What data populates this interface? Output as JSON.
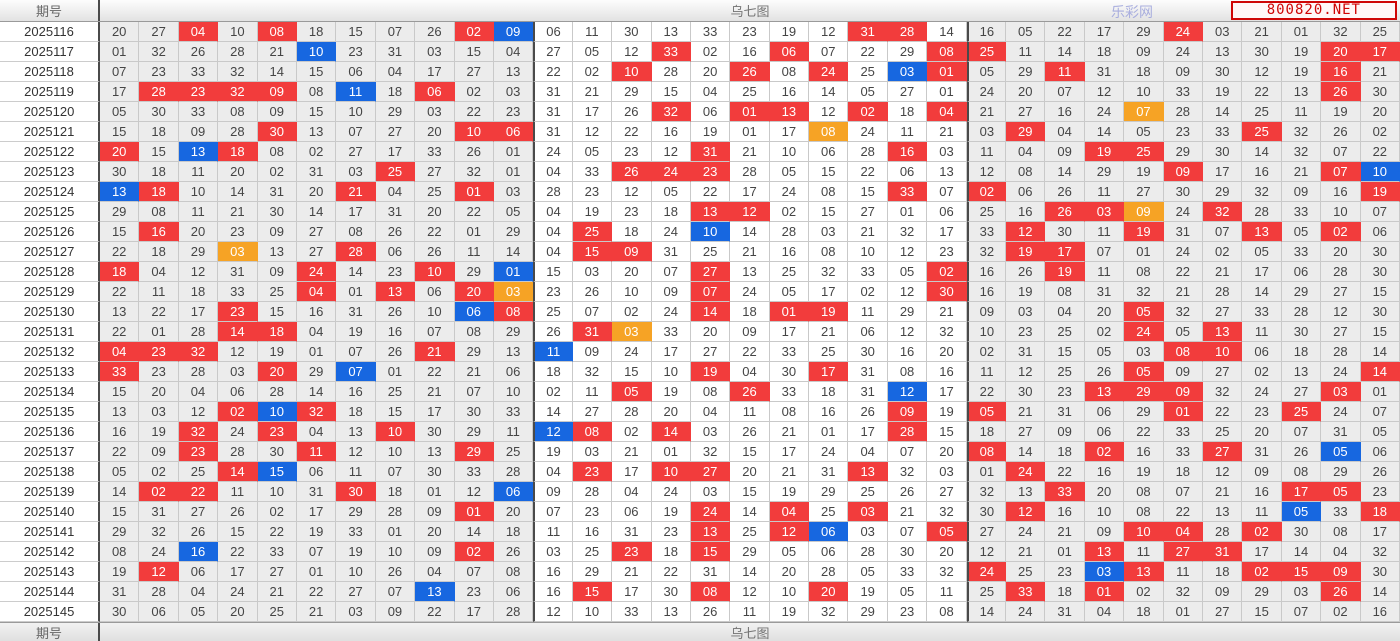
{
  "header": {
    "left_label": "期号",
    "center_label": "乌七图",
    "watermark_text": "乐彩网",
    "badge_text": "800820.NET"
  },
  "footer": {
    "left_label": "期号",
    "center_label": "乌七图"
  },
  "colors": {
    "red": "#f23c3c",
    "blue": "#1767e0",
    "orange": "#f6a325"
  },
  "chart_data": {
    "type": "table",
    "title": "乌七图",
    "columns": 33,
    "columns_per_section": 11,
    "cell_flag_legend": {
      "R": "red",
      "B": "blue",
      "O": "orange"
    },
    "rows": [
      {
        "period": "2025116",
        "cells": [
          "20",
          "27",
          "04:R",
          "10",
          "08:R",
          "18",
          "15",
          "07",
          "26",
          "02:R",
          "09:B",
          "06",
          "11",
          "30",
          "13",
          "33",
          "23",
          "19",
          "12",
          "31:R",
          "28:R",
          "14",
          "16",
          "05",
          "22",
          "17",
          "29",
          "24:R",
          "03",
          "21",
          "01",
          "32",
          "25"
        ]
      },
      {
        "period": "2025117",
        "cells": [
          "01",
          "32",
          "26",
          "28",
          "21",
          "10:B",
          "23",
          "31",
          "03",
          "15",
          "04",
          "27",
          "05",
          "12",
          "33:R",
          "02",
          "16",
          "06:R",
          "07",
          "22",
          "29",
          "08:R",
          "25:R",
          "11",
          "14",
          "18",
          "09",
          "24",
          "13",
          "30",
          "19",
          "20:R",
          "17:R"
        ]
      },
      {
        "period": "2025118",
        "cells": [
          "07",
          "23",
          "33",
          "32",
          "14",
          "15",
          "06",
          "04",
          "17",
          "27",
          "13",
          "22",
          "02",
          "10:R",
          "28",
          "20",
          "26:R",
          "08",
          "24:R",
          "25",
          "03:B",
          "01:R",
          "05",
          "29",
          "11:R",
          "31",
          "18",
          "09",
          "30",
          "12",
          "19",
          "16:R",
          "21"
        ]
      },
      {
        "period": "2025119",
        "cells": [
          "17",
          "28:R",
          "23:R",
          "32:R",
          "09:R",
          "08",
          "11:B",
          "18",
          "06:R",
          "02",
          "03",
          "31",
          "21",
          "29",
          "15",
          "04",
          "25",
          "16",
          "14",
          "05",
          "27",
          "01",
          "24",
          "20",
          "07",
          "12",
          "10",
          "33",
          "19",
          "22",
          "13",
          "26:R",
          "30"
        ]
      },
      {
        "period": "2025120",
        "cells": [
          "05",
          "30",
          "33",
          "08",
          "09",
          "15",
          "10",
          "29",
          "03",
          "22",
          "23",
          "31",
          "17",
          "26",
          "32:R",
          "06",
          "01:R",
          "13:R",
          "12",
          "02:R",
          "18",
          "04:R",
          "21",
          "27",
          "16",
          "24",
          "07:O",
          "28",
          "14",
          "25",
          "11",
          "19",
          "20"
        ]
      },
      {
        "period": "2025121",
        "cells": [
          "15",
          "18",
          "09",
          "28",
          "30:R",
          "13",
          "07",
          "27",
          "20",
          "10:R",
          "06:R",
          "31",
          "12",
          "22",
          "16",
          "19",
          "01",
          "17",
          "08:O",
          "24",
          "11",
          "21",
          "03",
          "29:R",
          "04",
          "14",
          "05",
          "23",
          "33",
          "25:R",
          "32",
          "26",
          "02"
        ]
      },
      {
        "period": "2025122",
        "cells": [
          "20:R",
          "15",
          "13:B",
          "18:R",
          "08",
          "02",
          "27",
          "17",
          "33",
          "26",
          "01",
          "24",
          "05",
          "23",
          "12",
          "31:R",
          "21",
          "10",
          "06",
          "28",
          "16:R",
          "03",
          "11",
          "04",
          "09",
          "19:R",
          "25:R",
          "29",
          "30",
          "14",
          "32",
          "07",
          "22"
        ]
      },
      {
        "period": "2025123",
        "cells": [
          "30",
          "18",
          "11",
          "20",
          "02",
          "31",
          "03",
          "25:R",
          "27",
          "32",
          "01",
          "04",
          "33",
          "26:R",
          "24:R",
          "23:R",
          "28",
          "05",
          "15",
          "22",
          "06",
          "13",
          "12",
          "08",
          "14",
          "29",
          "19",
          "09:R",
          "17",
          "16",
          "21",
          "07:R",
          "10:B"
        ]
      },
      {
        "period": "2025124",
        "cells": [
          "13:B",
          "18:R",
          "10",
          "14",
          "31",
          "20",
          "21:R",
          "04",
          "25",
          "01:R",
          "03",
          "28",
          "23",
          "12",
          "05",
          "22",
          "17",
          "24",
          "08",
          "15",
          "33:R",
          "07",
          "02:R",
          "06",
          "26",
          "11",
          "27",
          "30",
          "29",
          "32",
          "09",
          "16",
          "19:R"
        ]
      },
      {
        "period": "2025125",
        "cells": [
          "29",
          "08",
          "11",
          "21",
          "30",
          "14",
          "17",
          "31",
          "20",
          "22",
          "05",
          "04",
          "19",
          "23",
          "18",
          "13:R",
          "12:R",
          "02",
          "15",
          "27",
          "01",
          "06",
          "25",
          "16",
          "26:R",
          "03:R",
          "09:O",
          "24",
          "32:R",
          "28",
          "33",
          "10",
          "07"
        ]
      },
      {
        "period": "2025126",
        "cells": [
          "15",
          "16:R",
          "20",
          "23",
          "09",
          "27",
          "08",
          "26",
          "22",
          "01",
          "29",
          "04",
          "25:R",
          "18",
          "24",
          "10:B",
          "14",
          "28",
          "03",
          "21",
          "32",
          "17",
          "33",
          "12:R",
          "30",
          "11",
          "19:R",
          "31",
          "07",
          "13:R",
          "05",
          "02:R",
          "06"
        ]
      },
      {
        "period": "2025127",
        "cells": [
          "22",
          "18",
          "29",
          "03:O",
          "13",
          "27",
          "28:R",
          "06",
          "26",
          "11",
          "14",
          "04",
          "15:R",
          "09:R",
          "31",
          "25",
          "21",
          "16",
          "08",
          "10",
          "12",
          "23",
          "32",
          "19:R",
          "17:R",
          "07",
          "01",
          "24",
          "02",
          "05",
          "33",
          "20",
          "30"
        ]
      },
      {
        "period": "2025128",
        "cells": [
          "18:R",
          "04",
          "12",
          "31",
          "09",
          "24:R",
          "14",
          "23",
          "10:R",
          "29",
          "01:B",
          "15",
          "03",
          "20",
          "07",
          "27:R",
          "13",
          "25",
          "32",
          "33",
          "05",
          "02:R",
          "16",
          "26",
          "19:R",
          "11",
          "08",
          "22",
          "21",
          "17",
          "06",
          "28",
          "30"
        ]
      },
      {
        "period": "2025129",
        "cells": [
          "22",
          "11",
          "18",
          "33",
          "25",
          "04:R",
          "01",
          "13:R",
          "06",
          "20:R",
          "03:O",
          "23",
          "26",
          "10",
          "09",
          "07:R",
          "24",
          "05",
          "17",
          "02",
          "12",
          "30:R",
          "16",
          "19",
          "08",
          "31",
          "32",
          "21",
          "28",
          "14",
          "29",
          "27",
          "15"
        ]
      },
      {
        "period": "2025130",
        "cells": [
          "13",
          "22",
          "17",
          "23:R",
          "15",
          "16",
          "31",
          "26",
          "10",
          "06:B",
          "08:R",
          "25",
          "07",
          "02",
          "24",
          "14:R",
          "18",
          "01:R",
          "19:R",
          "11",
          "29",
          "21",
          "09",
          "03",
          "04",
          "20",
          "05:R",
          "32",
          "27",
          "33",
          "28",
          "12",
          "30"
        ]
      },
      {
        "period": "2025131",
        "cells": [
          "22",
          "01",
          "28",
          "14:R",
          "18:R",
          "04",
          "19",
          "16",
          "07",
          "08",
          "29",
          "26",
          "31:R",
          "03:O",
          "33",
          "20",
          "09",
          "17",
          "21",
          "06",
          "12",
          "32",
          "10",
          "23",
          "25",
          "02",
          "24:R",
          "05",
          "13:R",
          "11",
          "30",
          "27",
          "15"
        ]
      },
      {
        "period": "2025132",
        "cells": [
          "04:R",
          "23:R",
          "32:R",
          "12",
          "19",
          "01",
          "07",
          "26",
          "21:R",
          "29",
          "13",
          "11:B",
          "09",
          "24",
          "17",
          "27",
          "22",
          "33",
          "25",
          "30",
          "16",
          "20",
          "02",
          "31",
          "15",
          "05",
          "03",
          "08:R",
          "10:R",
          "06",
          "18",
          "28",
          "14"
        ]
      },
      {
        "period": "2025133",
        "cells": [
          "33:R",
          "23",
          "28",
          "03",
          "20:R",
          "29",
          "07:B",
          "01",
          "22",
          "21",
          "06",
          "18",
          "32",
          "15",
          "10",
          "19:R",
          "04",
          "30",
          "17:R",
          "31",
          "08",
          "16",
          "11",
          "12",
          "25",
          "26",
          "05:R",
          "09",
          "27",
          "02",
          "13",
          "24",
          "14:R"
        ]
      },
      {
        "period": "2025134",
        "cells": [
          "15",
          "20",
          "04",
          "06",
          "28",
          "14",
          "16",
          "25",
          "21",
          "07",
          "10",
          "02",
          "11",
          "05:R",
          "19",
          "08",
          "26:R",
          "33",
          "18",
          "31",
          "12:B",
          "17",
          "22",
          "30",
          "23",
          "13:R",
          "29:R",
          "09:R",
          "32",
          "24",
          "27",
          "03:R",
          "01"
        ]
      },
      {
        "period": "2025135",
        "cells": [
          "13",
          "03",
          "12",
          "02:R",
          "10:B",
          "32:R",
          "18",
          "15",
          "17",
          "30",
          "33",
          "14",
          "27",
          "28",
          "20",
          "04",
          "11",
          "08",
          "16",
          "26",
          "09:R",
          "19",
          "05:R",
          "21",
          "31",
          "06",
          "29",
          "01:R",
          "22",
          "23",
          "25:R",
          "24",
          "07"
        ]
      },
      {
        "period": "2025136",
        "cells": [
          "16",
          "19",
          "32:R",
          "24",
          "23:R",
          "04",
          "13",
          "10:R",
          "30",
          "29",
          "11",
          "12:B",
          "08:R",
          "02",
          "14:R",
          "03",
          "26",
          "21",
          "01",
          "17",
          "28:R",
          "15",
          "18",
          "27",
          "09",
          "06",
          "22",
          "33",
          "25",
          "20",
          "07",
          "31",
          "05"
        ]
      },
      {
        "period": "2025137",
        "cells": [
          "22",
          "09",
          "23:R",
          "28",
          "30",
          "11:R",
          "12",
          "10",
          "13",
          "29:R",
          "25",
          "19",
          "03",
          "21",
          "01",
          "32",
          "15",
          "17",
          "24",
          "04",
          "07",
          "20",
          "08:R",
          "14",
          "18",
          "02:R",
          "16",
          "33",
          "27:R",
          "31",
          "26",
          "05:B",
          "06"
        ]
      },
      {
        "period": "2025138",
        "cells": [
          "05",
          "02",
          "25",
          "14:R",
          "15:B",
          "06",
          "11",
          "07",
          "30",
          "33",
          "28",
          "04",
          "23:R",
          "17",
          "10:R",
          "27:R",
          "20",
          "21",
          "31",
          "13:R",
          "32",
          "03",
          "01",
          "24:R",
          "22",
          "16",
          "19",
          "18",
          "12",
          "09",
          "08",
          "29",
          "26"
        ]
      },
      {
        "period": "2025139",
        "cells": [
          "14",
          "02:R",
          "22:R",
          "11",
          "10",
          "31",
          "30:R",
          "18",
          "01",
          "12",
          "06:B",
          "09",
          "28",
          "04",
          "24",
          "03",
          "15",
          "19",
          "29",
          "25",
          "26",
          "27",
          "32",
          "13",
          "33:R",
          "20",
          "08",
          "07",
          "21",
          "16",
          "17:R",
          "05:R",
          "23"
        ]
      },
      {
        "period": "2025140",
        "cells": [
          "15",
          "31",
          "27",
          "26",
          "02",
          "17",
          "29",
          "28",
          "09",
          "01:R",
          "20",
          "07",
          "23",
          "06",
          "19",
          "24:R",
          "14",
          "04:R",
          "25",
          "03:R",
          "21",
          "32",
          "30",
          "12:R",
          "16",
          "10",
          "08",
          "22",
          "13",
          "11",
          "05:B",
          "33",
          "18:R"
        ]
      },
      {
        "period": "2025141",
        "cells": [
          "29",
          "32",
          "26",
          "15",
          "22",
          "19",
          "33",
          "01",
          "20",
          "14",
          "18",
          "11",
          "16",
          "31",
          "23",
          "13:R",
          "25",
          "12:R",
          "06:B",
          "03",
          "07",
          "05:R",
          "27",
          "24",
          "21",
          "09",
          "10:R",
          "04:R",
          "28",
          "02:R",
          "30",
          "08",
          "17"
        ]
      },
      {
        "period": "2025142",
        "cells": [
          "08",
          "24",
          "16:B",
          "22",
          "33",
          "07",
          "19",
          "10",
          "09",
          "02:R",
          "26",
          "03",
          "25",
          "23:R",
          "18",
          "15:R",
          "29",
          "05",
          "06",
          "28",
          "30",
          "20",
          "12",
          "21",
          "01",
          "13:R",
          "11",
          "27:R",
          "31:R",
          "17",
          "14",
          "04",
          "32"
        ]
      },
      {
        "period": "2025143",
        "cells": [
          "19",
          "12:R",
          "06",
          "17",
          "27",
          "01",
          "10",
          "26",
          "04",
          "07",
          "08",
          "16",
          "29",
          "21",
          "22",
          "31",
          "14",
          "20",
          "28",
          "05",
          "33",
          "32",
          "24:R",
          "25",
          "23",
          "03:B",
          "13:R",
          "11",
          "18",
          "02:R",
          "15:R",
          "09:R",
          "30"
        ]
      },
      {
        "period": "2025144",
        "cells": [
          "31",
          "28",
          "04",
          "24",
          "21",
          "22",
          "27",
          "07",
          "13:B",
          "23",
          "06",
          "16",
          "15:R",
          "17",
          "30",
          "08:R",
          "12",
          "10",
          "20:R",
          "19",
          "05",
          "11",
          "25",
          "33:R",
          "18",
          "01:R",
          "02",
          "32",
          "09",
          "29",
          "03",
          "26:R",
          "14"
        ]
      },
      {
        "period": "2025145",
        "cells": [
          "30",
          "06",
          "05",
          "20",
          "25",
          "21",
          "03",
          "09",
          "22",
          "17",
          "28",
          "12",
          "10",
          "33",
          "13",
          "26",
          "11",
          "19",
          "32",
          "29",
          "23",
          "08",
          "14",
          "24",
          "31",
          "04",
          "18",
          "01",
          "27",
          "15",
          "07",
          "02",
          "16"
        ]
      }
    ]
  }
}
